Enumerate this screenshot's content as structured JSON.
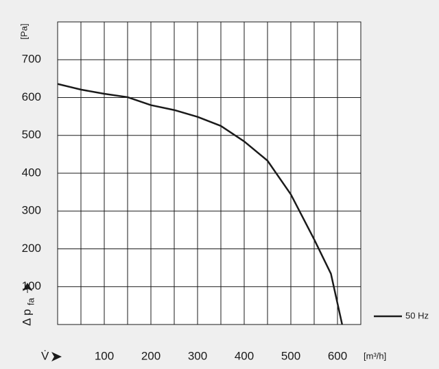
{
  "chart_data": {
    "type": "line",
    "y_unit": "[Pa]",
    "y_label": "Δ p",
    "y_label_sub": "fa",
    "x_label": "V̇",
    "x_unit": "[m³/h]",
    "xlim": [
      0,
      650
    ],
    "xticks": [
      100,
      200,
      300,
      400,
      500,
      600
    ],
    "x_minor_grid": [
      50,
      150,
      250,
      350,
      450,
      550
    ],
    "ylim": [
      0,
      800
    ],
    "yticks": [
      100,
      200,
      300,
      400,
      500,
      600,
      700
    ],
    "grid": true,
    "series": [
      {
        "name": "50 Hz",
        "color": "#1a1a1a",
        "x": [
          0,
          50,
          100,
          150,
          200,
          250,
          300,
          350,
          400,
          450,
          500,
          550,
          586,
          610
        ],
        "values": [
          636,
          621,
          610,
          601,
          580,
          567,
          549,
          525,
          484,
          433,
          344,
          225,
          134,
          0
        ]
      }
    ]
  }
}
